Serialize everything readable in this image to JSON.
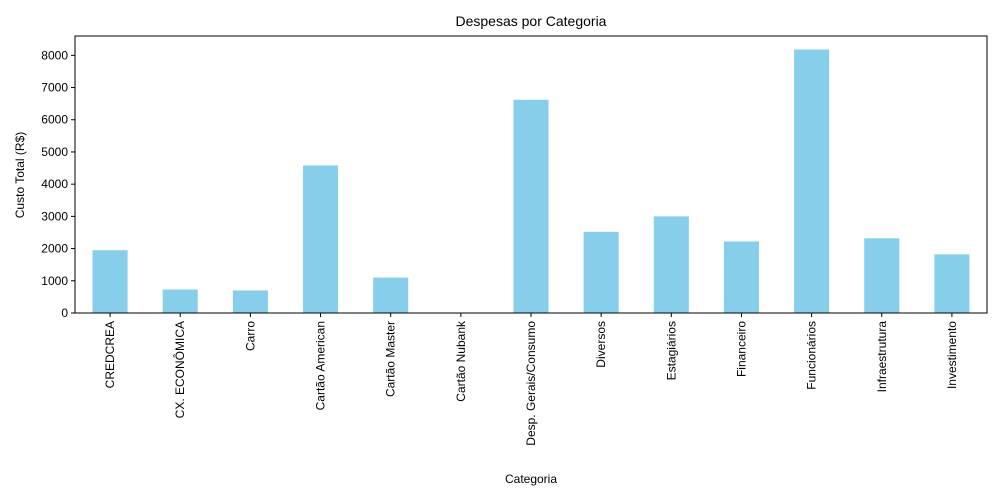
{
  "chart_data": {
    "type": "bar",
    "title": "Despesas por Categoria",
    "xlabel": "Categoria",
    "ylabel": "Custo Total (R$)",
    "categories": [
      "CREDCREA",
      "CX. ECONÔMICA",
      "Carro",
      "Cartão American",
      "Cartão Master",
      "Cartão Nubank",
      "Desp. Gerais/Consumo",
      "Diversos",
      "Estagiários",
      "Financeiro",
      "Funcionários",
      "Infraestrutura",
      "Investimento"
    ],
    "values": [
      1950,
      730,
      700,
      4580,
      1100,
      0,
      6620,
      2520,
      3000,
      2220,
      8180,
      2320,
      1820
    ],
    "ylim": [
      0,
      8600
    ],
    "yticks": [
      0,
      1000,
      2000,
      3000,
      4000,
      5000,
      6000,
      7000,
      8000
    ],
    "bar_color": "#87ceeb",
    "grid": false,
    "legend": "none"
  }
}
